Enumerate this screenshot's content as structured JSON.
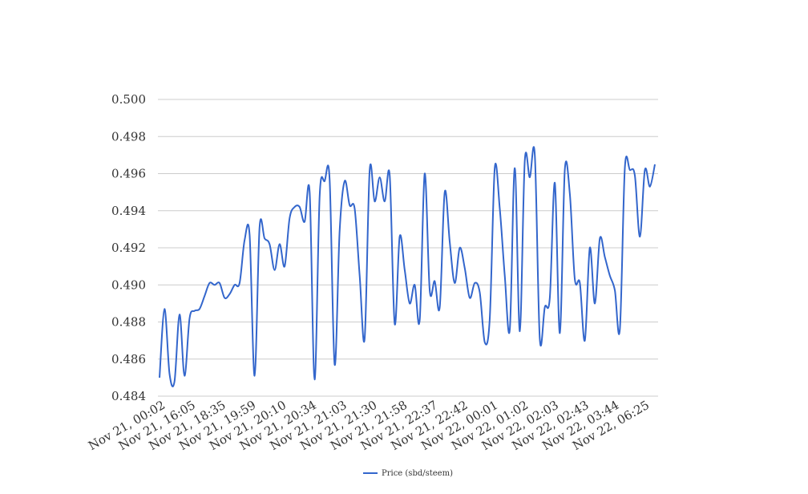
{
  "chart_data": {
    "type": "line",
    "title": "",
    "xlabel": "",
    "ylabel": "",
    "ylim": [
      0.484,
      0.5
    ],
    "y_ticks": [
      "0.484",
      "0.486",
      "0.488",
      "0.490",
      "0.492",
      "0.494",
      "0.496",
      "0.498",
      "0.500"
    ],
    "x_tick_labels": [
      "Nov 21, 00:02",
      "Nov 21, 16:05",
      "Nov 21, 18:35",
      "Nov 21, 19:59",
      "Nov 21, 20:10",
      "Nov 21, 20:34",
      "Nov 21, 21:03",
      "Nov 21, 21:30",
      "Nov 21, 21:58",
      "Nov 21, 22:37",
      "Nov 21, 22:42",
      "Nov 22, 00:01",
      "Nov 22, 01:02",
      "Nov 22, 02:03",
      "Nov 22, 02:43",
      "Nov 22, 03:44",
      "Nov 22, 06:25"
    ],
    "grid": true,
    "legend_position": "bottom",
    "series": [
      {
        "name": "Price (sbd/steem)",
        "color": "#3366cc",
        "values": [
          0.485,
          0.4887,
          0.4852,
          0.4848,
          0.4884,
          0.4851,
          0.4882,
          0.4886,
          0.4887,
          0.4894,
          0.4901,
          0.49,
          0.4901,
          0.4893,
          0.4895,
          0.49,
          0.4901,
          0.4924,
          0.4927,
          0.4851,
          0.4931,
          0.4925,
          0.4922,
          0.4908,
          0.4922,
          0.491,
          0.4936,
          0.4942,
          0.4942,
          0.4934,
          0.495,
          0.4849,
          0.4948,
          0.4956,
          0.4957,
          0.4857,
          0.4929,
          0.4956,
          0.4943,
          0.4941,
          0.4905,
          0.4871,
          0.4962,
          0.4945,
          0.4958,
          0.4945,
          0.4959,
          0.4879,
          0.4926,
          0.4908,
          0.489,
          0.49,
          0.4881,
          0.496,
          0.4897,
          0.4902,
          0.4888,
          0.495,
          0.4923,
          0.4901,
          0.492,
          0.4909,
          0.4893,
          0.4901,
          0.4896,
          0.4869,
          0.4882,
          0.4963,
          0.4941,
          0.4905,
          0.4876,
          0.4963,
          0.4875,
          0.4967,
          0.4958,
          0.497,
          0.4871,
          0.4888,
          0.4893,
          0.4955,
          0.4874,
          0.4962,
          0.4949,
          0.4903,
          0.4901,
          0.487,
          0.492,
          0.489,
          0.4925,
          0.4915,
          0.4905,
          0.4897,
          0.4876,
          0.4963,
          0.4962,
          0.4959,
          0.4926,
          0.4962,
          0.4953,
          0.4965
        ]
      }
    ]
  }
}
